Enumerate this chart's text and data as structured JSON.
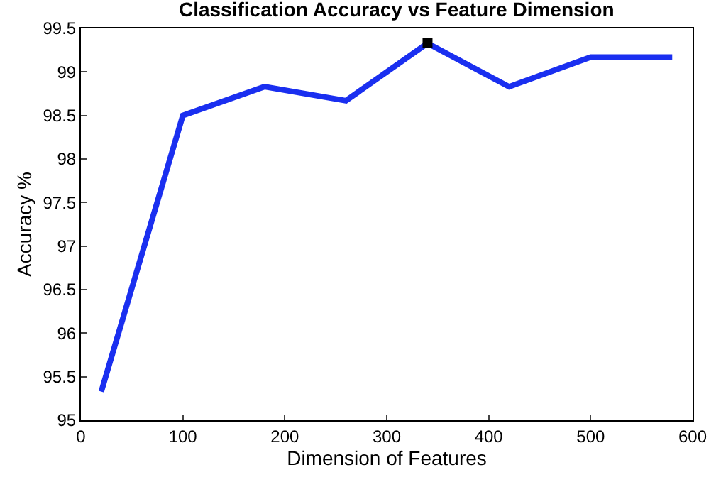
{
  "chart_data": {
    "type": "line",
    "title": "Classification Accuracy vs Feature Dimension",
    "xlabel": "Dimension of Features",
    "ylabel": "Accuracy %",
    "x": [
      20,
      100,
      180,
      260,
      340,
      420,
      500,
      580
    ],
    "series": [
      {
        "color": "#1a2ff0",
        "values": [
          95.33,
          98.5,
          98.83,
          98.67,
          99.33,
          98.83,
          99.17,
          99.17
        ]
      },
      {
        "type": "scatter",
        "marker": "square",
        "color": "#000000",
        "x": [
          340
        ],
        "values": [
          99.33
        ]
      }
    ],
    "xlim": [
      0,
      600
    ],
    "xticks": [
      0,
      100,
      200,
      300,
      400,
      500,
      600
    ],
    "ylim": [
      95,
      99.5
    ],
    "yticks": [
      95,
      95.5,
      96,
      96.5,
      97,
      97.5,
      98,
      98.5,
      99,
      99.5
    ]
  }
}
